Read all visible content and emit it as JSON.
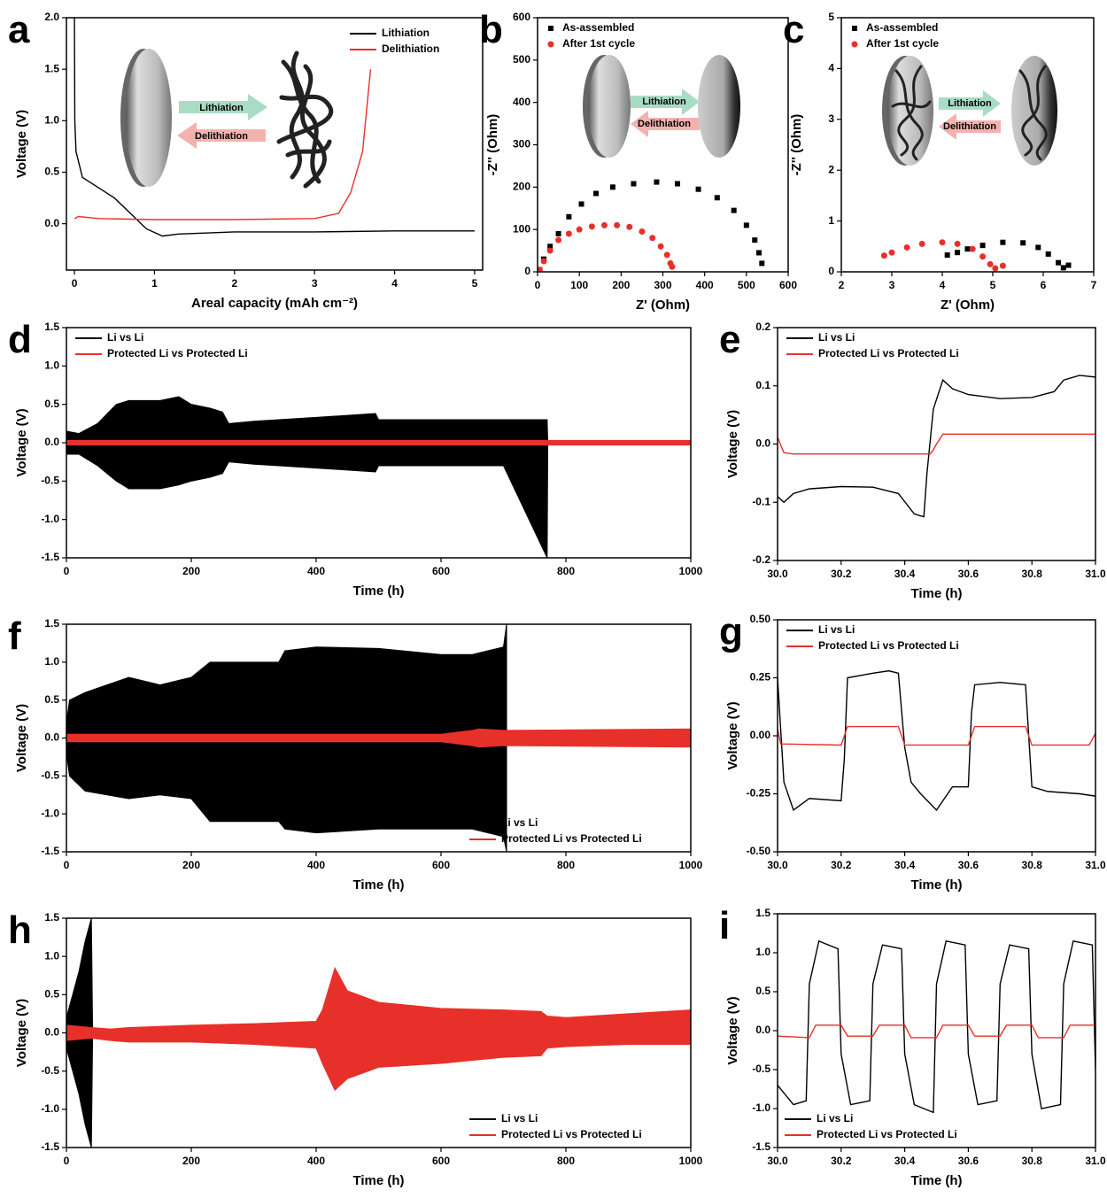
{
  "chart_data": [
    {
      "type": "line",
      "panel_label": "a",
      "xlabel": "Areal capacity (mAh cm⁻²)",
      "ylabel": "Voltage (V)",
      "xlim": [
        -0.1,
        5.1
      ],
      "xticks": [
        0,
        1,
        2,
        3,
        4,
        5
      ],
      "ylim": [
        -0.45,
        2.0
      ],
      "yticks": [
        {
          "value": 0,
          "label": "0.0"
        },
        0.5,
        {
          "value": 1,
          "label": "1.0"
        },
        1.5,
        {
          "value": 2,
          "label": "2.0"
        }
      ],
      "legend": "upper right",
      "annotations": [
        "Lithiation",
        "Delithiation"
      ],
      "series": [
        {
          "name": "Lithiation",
          "color": "#000000",
          "x": [
            0,
            0.005,
            0.02,
            0.1,
            0.3,
            0.5,
            0.7,
            0.9,
            1.1,
            1.3,
            2,
            3,
            4,
            5
          ],
          "values": [
            2.0,
            1.0,
            0.7,
            0.45,
            0.35,
            0.25,
            0.1,
            -0.05,
            -0.12,
            -0.1,
            -0.08,
            -0.08,
            -0.07,
            -0.07
          ]
        },
        {
          "name": "Delithiation",
          "color": "#e8302a",
          "x": [
            0,
            0.05,
            0.3,
            1,
            2,
            3,
            3.3,
            3.45,
            3.6,
            3.7
          ],
          "values": [
            0.05,
            0.07,
            0.05,
            0.04,
            0.04,
            0.05,
            0.1,
            0.3,
            0.7,
            1.5
          ]
        }
      ]
    },
    {
      "type": "scatter",
      "panel_label": "b",
      "xlabel": "Z' (Ohm)",
      "ylabel": "-Z'' (Ohm)",
      "xlim": [
        0,
        600
      ],
      "xticks": [
        0,
        100,
        200,
        300,
        400,
        500,
        600
      ],
      "ylim": [
        0,
        600
      ],
      "yticks": [
        0,
        100,
        200,
        300,
        400,
        500,
        600
      ],
      "legend": "upper left",
      "annotations": [
        "Lithiation",
        "Delithiation"
      ],
      "series": [
        {
          "name": "As-assembled",
          "color": "#000000",
          "marker": "square",
          "x": [
            5,
            15,
            30,
            50,
            75,
            105,
            140,
            180,
            230,
            285,
            335,
            385,
            430,
            470,
            500,
            520,
            530,
            537
          ],
          "values": [
            5,
            30,
            60,
            90,
            130,
            160,
            185,
            200,
            208,
            212,
            208,
            195,
            175,
            145,
            110,
            75,
            45,
            20
          ]
        },
        {
          "name": "After 1st cycle",
          "color": "#e8302a",
          "marker": "circle",
          "x": [
            5,
            15,
            30,
            50,
            75,
            100,
            130,
            160,
            190,
            220,
            250,
            275,
            295,
            310,
            318,
            322
          ],
          "values": [
            5,
            25,
            50,
            75,
            90,
            100,
            107,
            110,
            110,
            106,
            95,
            80,
            60,
            40,
            20,
            12
          ]
        }
      ]
    },
    {
      "type": "scatter",
      "panel_label": "c",
      "xlabel": "Z' (Ohm)",
      "ylabel": "-Z'' (Ohm)",
      "xlim": [
        2,
        7
      ],
      "xticks": [
        2,
        3,
        4,
        5,
        6,
        7
      ],
      "ylim": [
        0,
        5
      ],
      "yticks": [
        0,
        1,
        2,
        3,
        4,
        5
      ],
      "legend": "upper left",
      "annotations": [
        "Lithiation",
        "Delithiation"
      ],
      "series": [
        {
          "name": "As-assembled",
          "color": "#000000",
          "marker": "square",
          "x": [
            4.1,
            4.3,
            4.5,
            4.8,
            5.2,
            5.6,
            5.9,
            6.1,
            6.3,
            6.4,
            6.5
          ],
          "values": [
            0.33,
            0.38,
            0.45,
            0.52,
            0.58,
            0.57,
            0.48,
            0.35,
            0.18,
            0.08,
            0.13
          ]
        },
        {
          "name": "After 1st cycle",
          "color": "#e8302a",
          "marker": "circle",
          "x": [
            2.85,
            3.0,
            3.3,
            3.6,
            4.0,
            4.3,
            4.6,
            4.8,
            4.95,
            5.05,
            5.2
          ],
          "values": [
            0.32,
            0.38,
            0.48,
            0.55,
            0.58,
            0.55,
            0.45,
            0.3,
            0.15,
            0.07,
            0.12
          ]
        }
      ]
    },
    {
      "type": "band",
      "panel_label": "d",
      "xlabel": "Time (h)",
      "ylabel": "Voltage (V)",
      "xlim": [
        0,
        1000
      ],
      "xticks": [
        0,
        200,
        400,
        600,
        800,
        1000
      ],
      "ylim": [
        -1.5,
        1.5
      ],
      "yticks": [
        -1.5,
        {
          "value": -1,
          "label": "-1.0"
        },
        -0.5,
        {
          "value": 0,
          "label": "0.0"
        },
        0.5,
        {
          "value": 1,
          "label": "1.0"
        },
        1.5
      ],
      "legend": "upper left",
      "series": [
        {
          "name": "Li vs Li",
          "color": "#000000",
          "x": [
            0,
            20,
            50,
            80,
            100,
            150,
            180,
            200,
            230,
            250,
            260,
            300,
            400,
            495,
            500,
            600,
            700,
            770,
            771
          ],
          "high": [
            0.15,
            0.12,
            0.25,
            0.5,
            0.55,
            0.55,
            0.6,
            0.5,
            0.45,
            0.4,
            0.25,
            0.28,
            0.33,
            0.38,
            0.3,
            0.3,
            0.3,
            0.3,
            0
          ],
          "low": [
            -0.15,
            -0.15,
            -0.3,
            -0.5,
            -0.6,
            -0.6,
            -0.55,
            -0.5,
            -0.45,
            -0.4,
            -0.25,
            -0.28,
            -0.33,
            -0.38,
            -0.3,
            -0.3,
            -0.3,
            -1.5,
            0
          ]
        },
        {
          "name": "Protected Li vs Protected Li",
          "color": "#e8302a",
          "x": [
            0,
            1000
          ],
          "high": [
            0.03,
            0.03
          ],
          "low": [
            -0.03,
            -0.03
          ]
        }
      ]
    },
    {
      "type": "line",
      "panel_label": "e",
      "xlabel": "Time (h)",
      "ylabel": "Voltage (V)",
      "xlim": [
        30,
        31
      ],
      "xticks": [
        {
          "value": 30,
          "label": "30.0"
        },
        30.2,
        30.4,
        30.6,
        30.8,
        {
          "value": 31,
          "label": "31.0"
        }
      ],
      "ylim": [
        -0.2,
        0.2
      ],
      "yticks": [
        -0.2,
        -0.1,
        {
          "value": 0,
          "label": "0.0"
        },
        0.1,
        0.2
      ],
      "legend": "upper left",
      "series": [
        {
          "name": "Li vs Li",
          "color": "#000000",
          "x": [
            30,
            30.02,
            30.05,
            30.1,
            30.2,
            30.3,
            30.38,
            30.43,
            30.46,
            30.47,
            30.49,
            30.52,
            30.55,
            30.6,
            30.7,
            30.8,
            30.87,
            30.9,
            30.95,
            31.0
          ],
          "values": [
            -0.09,
            -0.1,
            -0.085,
            -0.077,
            -0.073,
            -0.074,
            -0.085,
            -0.12,
            -0.125,
            -0.05,
            0.06,
            0.11,
            0.095,
            0.085,
            0.078,
            0.08,
            0.09,
            0.11,
            0.118,
            0.115
          ]
        },
        {
          "name": "Protected Li vs Protected Li",
          "color": "#e8302a",
          "x": [
            30,
            30.02,
            30.05,
            30.48,
            30.49,
            30.5,
            30.52,
            31.0
          ],
          "values": [
            0.012,
            -0.015,
            -0.017,
            -0.017,
            -0.01,
            0.0,
            0.017,
            0.017
          ]
        }
      ]
    },
    {
      "type": "band",
      "panel_label": "f",
      "xlabel": "Time (h)",
      "ylabel": "Voltage (V)",
      "xlim": [
        0,
        1000
      ],
      "xticks": [
        0,
        200,
        400,
        600,
        800,
        1000
      ],
      "ylim": [
        -1.5,
        1.5
      ],
      "yticks": [
        -1.5,
        {
          "value": -1,
          "label": "-1.0"
        },
        -0.5,
        {
          "value": 0,
          "label": "0.0"
        },
        0.5,
        {
          "value": 1,
          "label": "1.0"
        },
        1.5
      ],
      "legend": "lower right",
      "series": [
        {
          "name": "Li vs Li",
          "color": "#000000",
          "x": [
            0,
            5,
            30,
            100,
            150,
            200,
            215,
            230,
            300,
            340,
            350,
            400,
            500,
            600,
            650,
            700,
            705
          ],
          "high": [
            0.2,
            0.5,
            0.6,
            0.8,
            0.7,
            0.8,
            0.9,
            1.0,
            1.0,
            1.0,
            1.15,
            1.2,
            1.18,
            1.1,
            1.1,
            1.2,
            1.5
          ],
          "low": [
            -0.2,
            -0.5,
            -0.7,
            -0.8,
            -0.75,
            -0.8,
            -0.95,
            -1.1,
            -1.1,
            -1.1,
            -1.2,
            -1.25,
            -1.2,
            -1.2,
            -1.2,
            -1.3,
            -1.5
          ]
        },
        {
          "name": "Protected Li vs Protected Li",
          "color": "#e8302a",
          "x": [
            0,
            600,
            650,
            660,
            700,
            1000
          ],
          "high": [
            0.05,
            0.05,
            0.1,
            0.12,
            0.1,
            0.12
          ],
          "low": [
            -0.05,
            -0.05,
            -0.1,
            -0.12,
            -0.1,
            -0.12
          ]
        }
      ]
    },
    {
      "type": "line",
      "panel_label": "g",
      "xlabel": "Time (h)",
      "ylabel": "Voltage (V)",
      "xlim": [
        30,
        31
      ],
      "xticks": [
        {
          "value": 30,
          "label": "30.0"
        },
        30.2,
        30.4,
        30.6,
        30.8,
        {
          "value": 31,
          "label": "31.0"
        }
      ],
      "ylim": [
        -0.5,
        0.5
      ],
      "yticks": [
        {
          "value": -0.5,
          "label": "-0.50"
        },
        -0.25,
        {
          "value": 0,
          "label": "0.00"
        },
        0.25,
        {
          "value": 0.5,
          "label": "0.50"
        }
      ],
      "legend": "upper left",
      "series": [
        {
          "name": "Li vs Li",
          "color": "#000000",
          "x": [
            30,
            30.02,
            30.05,
            30.1,
            30.2,
            30.21,
            30.22,
            30.3,
            30.35,
            30.38,
            30.4,
            30.42,
            30.45,
            30.5,
            30.55,
            30.6,
            30.61,
            30.62,
            30.7,
            30.78,
            30.79,
            30.8,
            30.85,
            30.95,
            31.0
          ],
          "values": [
            0.25,
            -0.2,
            -0.32,
            -0.27,
            -0.28,
            -0.1,
            0.25,
            0.27,
            0.28,
            0.27,
            -0.05,
            -0.2,
            -0.25,
            -0.32,
            -0.22,
            -0.22,
            0.1,
            0.22,
            0.23,
            0.22,
            0,
            -0.22,
            -0.24,
            -0.25,
            -0.26
          ]
        },
        {
          "name": "Protected Li vs Protected Li",
          "color": "#e8302a",
          "x": [
            30,
            30.01,
            30.2,
            30.22,
            30.38,
            30.4,
            30.6,
            30.62,
            30.78,
            30.8,
            30.98,
            31.0
          ],
          "values": [
            0.03,
            -0.035,
            -0.04,
            0.04,
            0.04,
            -0.04,
            -0.04,
            0.04,
            0.04,
            -0.04,
            -0.04,
            0.01
          ]
        }
      ]
    },
    {
      "type": "band",
      "panel_label": "h",
      "xlabel": "Time (h)",
      "ylabel": "Voltage (V)",
      "xlim": [
        0,
        1000
      ],
      "xticks": [
        0,
        200,
        400,
        600,
        800,
        1000
      ],
      "ylim": [
        -1.5,
        1.5
      ],
      "yticks": [
        -1.5,
        {
          "value": -1,
          "label": "-1.0"
        },
        -0.5,
        {
          "value": 0,
          "label": "0.0"
        },
        0.5,
        {
          "value": 1,
          "label": "1.0"
        },
        1.5
      ],
      "legend": "lower right",
      "series": [
        {
          "name": "Li vs Li",
          "color": "#000000",
          "x": [
            0,
            10,
            20,
            30,
            40,
            42
          ],
          "high": [
            0.2,
            0.5,
            0.8,
            1.2,
            1.5,
            0
          ],
          "low": [
            -0.2,
            -0.5,
            -0.8,
            -1.2,
            -1.5,
            0
          ]
        },
        {
          "name": "Protected Li vs Protected Li",
          "color": "#e8302a",
          "x": [
            0,
            40,
            70,
            100,
            200,
            300,
            400,
            410,
            430,
            450,
            500,
            600,
            700,
            760,
            770,
            800,
            900,
            1000
          ],
          "high": [
            0.1,
            0.07,
            0.05,
            0.07,
            0.1,
            0.12,
            0.15,
            0.3,
            0.85,
            0.55,
            0.4,
            0.32,
            0.3,
            0.28,
            0.22,
            0.2,
            0.25,
            0.3
          ],
          "low": [
            -0.1,
            -0.07,
            -0.1,
            -0.12,
            -0.12,
            -0.15,
            -0.2,
            -0.4,
            -0.75,
            -0.6,
            -0.45,
            -0.4,
            -0.32,
            -0.3,
            -0.2,
            -0.18,
            -0.15,
            -0.15
          ]
        }
      ]
    },
    {
      "type": "line",
      "panel_label": "i",
      "xlabel": "Time (h)",
      "ylabel": "Voltage (V)",
      "xlim": [
        30,
        31
      ],
      "xticks": [
        {
          "value": 30,
          "label": "30.0"
        },
        30.2,
        30.4,
        30.6,
        30.8,
        {
          "value": 31,
          "label": "31.0"
        }
      ],
      "ylim": [
        -1.5,
        1.5
      ],
      "yticks": [
        -1.5,
        {
          "value": -1,
          "label": "-1.0"
        },
        -0.5,
        {
          "value": 0,
          "label": "0.0"
        },
        0.5,
        {
          "value": 1,
          "label": "1.0"
        },
        1.5
      ],
      "legend": "lower left",
      "series": [
        {
          "name": "Li vs Li",
          "color": "#000000",
          "x": [
            30,
            30.05,
            30.09,
            30.1,
            30.13,
            30.19,
            30.2,
            30.23,
            30.29,
            30.3,
            30.33,
            30.39,
            30.4,
            30.43,
            30.49,
            30.5,
            30.53,
            30.59,
            30.6,
            30.63,
            30.69,
            30.7,
            30.73,
            30.79,
            30.8,
            30.83,
            30.89,
            30.9,
            30.93,
            30.99,
            31.0
          ],
          "values": [
            -0.7,
            -0.95,
            -0.9,
            0.6,
            1.15,
            1.05,
            -0.3,
            -0.95,
            -0.9,
            0.6,
            1.1,
            1.05,
            -0.3,
            -0.95,
            -1.05,
            0.6,
            1.15,
            1.1,
            -0.3,
            -0.95,
            -0.9,
            0.6,
            1.1,
            1.05,
            -0.3,
            -1.0,
            -0.95,
            0.6,
            1.15,
            1.1,
            -0.5
          ]
        },
        {
          "name": "Protected Li vs Protected Li",
          "color": "#e8302a",
          "x": [
            30,
            30.1,
            30.12,
            30.2,
            30.22,
            30.3,
            30.32,
            30.4,
            30.42,
            30.5,
            30.52,
            30.6,
            30.62,
            30.7,
            30.72,
            30.8,
            30.82,
            30.9,
            30.92,
            31.0
          ],
          "values": [
            -0.07,
            -0.09,
            0.07,
            0.07,
            -0.07,
            -0.07,
            0.07,
            0.07,
            -0.09,
            -0.09,
            0.07,
            0.07,
            -0.07,
            -0.07,
            0.07,
            0.07,
            -0.09,
            -0.09,
            0.07,
            0.07
          ]
        }
      ]
    }
  ]
}
